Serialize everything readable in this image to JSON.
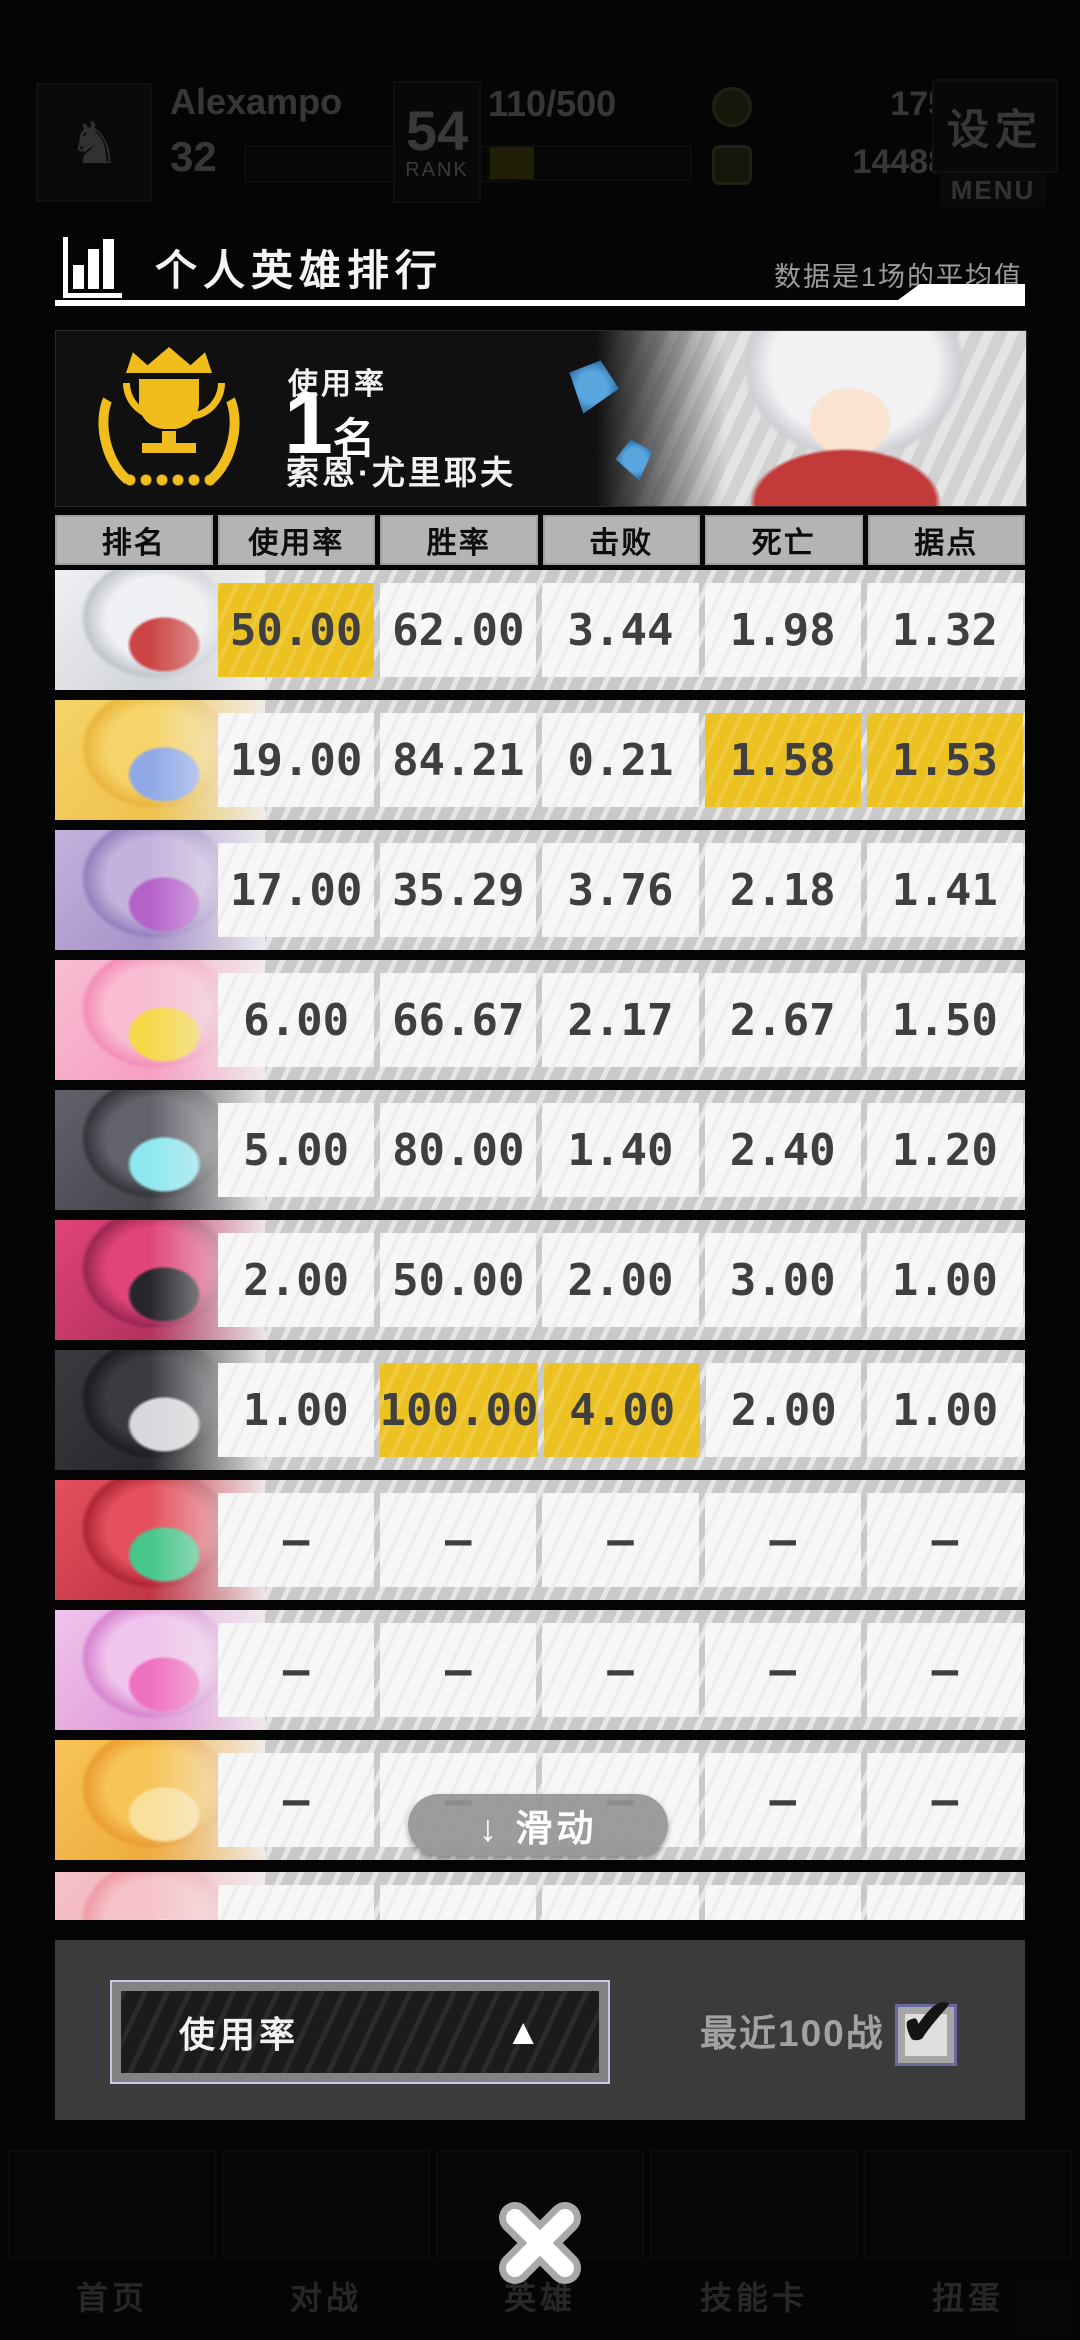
{
  "status_bar": {
    "player_name": "Alexampo",
    "player_level": "32",
    "rank_value": "54",
    "rank_label": "RANK",
    "rank_progress": "110/500",
    "gold_amount": "1753",
    "gem_amount": "144884",
    "settings_label": "设定",
    "menu_label": "MENU"
  },
  "panel_header": {
    "title": "个人英雄排行",
    "note": "数据是1场的平均值"
  },
  "banner": {
    "stat_label": "使用率",
    "rank_number": "1",
    "rank_unit": "名",
    "hero_name": "索恩·尤里耶夫"
  },
  "table": {
    "columns": [
      "排名",
      "使用率",
      "胜率",
      "击败",
      "死亡",
      "据点"
    ],
    "highlight_color": "#ecc222",
    "rows": [
      {
        "hero": "silver-hair-hero",
        "values": [
          "50.00",
          "62.00",
          "3.44",
          "1.98",
          "1.32"
        ],
        "highlights": [
          0
        ],
        "colors": {
          "c1": "#eef0f3",
          "c2": "#c3c6cd",
          "c3": "#cc4444"
        }
      },
      {
        "hero": "blonde-hero",
        "values": [
          "19.00",
          "84.21",
          "0.21",
          "1.58",
          "1.53"
        ],
        "highlights": [
          3,
          4
        ],
        "colors": {
          "c1": "#f6d469",
          "c2": "#eab73f",
          "c3": "#8fa8e8"
        }
      },
      {
        "hero": "purple-hair-hero",
        "values": [
          "17.00",
          "35.29",
          "3.76",
          "2.18",
          "1.41"
        ],
        "highlights": [],
        "colors": {
          "c1": "#c3b2dd",
          "c2": "#9782bf",
          "c3": "#b461c9"
        }
      },
      {
        "hero": "pink-hair-hero",
        "values": [
          "6.00",
          "66.67",
          "2.17",
          "2.67",
          "1.50"
        ],
        "highlights": [],
        "colors": {
          "c1": "#f9bdd3",
          "c2": "#f490b8",
          "c3": "#f7d84a"
        }
      },
      {
        "hero": "cyborg-hero",
        "values": [
          "5.00",
          "80.00",
          "1.40",
          "2.40",
          "1.20"
        ],
        "highlights": [],
        "colors": {
          "c1": "#61626a",
          "c2": "#36373d",
          "c3": "#8fe8f0"
        }
      },
      {
        "hero": "magenta-hair-hero",
        "values": [
          "2.00",
          "50.00",
          "2.00",
          "3.00",
          "1.00"
        ],
        "highlights": [],
        "colors": {
          "c1": "#e04478",
          "c2": "#9c2753",
          "c3": "#26262b"
        }
      },
      {
        "hero": "masked-hero",
        "values": [
          "1.00",
          "100.00",
          "4.00",
          "2.00",
          "1.00"
        ],
        "highlights": [
          1,
          2
        ],
        "colors": {
          "c1": "#3a3a40",
          "c2": "#1d1d22",
          "c3": "#d8d8dc"
        }
      },
      {
        "hero": "red-hair-hero",
        "values": [
          "–",
          "–",
          "–",
          "–",
          "–"
        ],
        "highlights": [],
        "colors": {
          "c1": "#e4505c",
          "c2": "#b02738",
          "c3": "#46c68a"
        }
      },
      {
        "hero": "pink-purple-hair-hero",
        "values": [
          "–",
          "–",
          "–",
          "–",
          "–"
        ],
        "highlights": [],
        "colors": {
          "c1": "#f0c4ec",
          "c2": "#d886cf",
          "c3": "#f070c0"
        }
      },
      {
        "hero": "orange-hair-hero",
        "values": [
          "–",
          "–",
          "–",
          "–",
          "–"
        ],
        "highlights": [],
        "colors": {
          "c1": "#f7c457",
          "c2": "#eb9e33",
          "c3": "#fae09a"
        }
      },
      {
        "hero": "light-pink-hair-hero",
        "values": [
          "",
          "",
          "",
          "",
          ""
        ],
        "highlights": [],
        "partial": true,
        "colors": {
          "c1": "#f6c3c8",
          "c2": "#ef9daa",
          "c3": "#fbe3e5"
        }
      }
    ]
  },
  "scroll_hint": "↓ 滑动",
  "controls": {
    "sort_value": "使用率",
    "sort_arrow": "▲",
    "recent_label": "最近100战",
    "checkbox_checked": true,
    "check_glyph": "✔"
  },
  "bottom_nav": [
    "首页",
    "对战",
    "英雄",
    "技能卡",
    "扭蛋"
  ]
}
